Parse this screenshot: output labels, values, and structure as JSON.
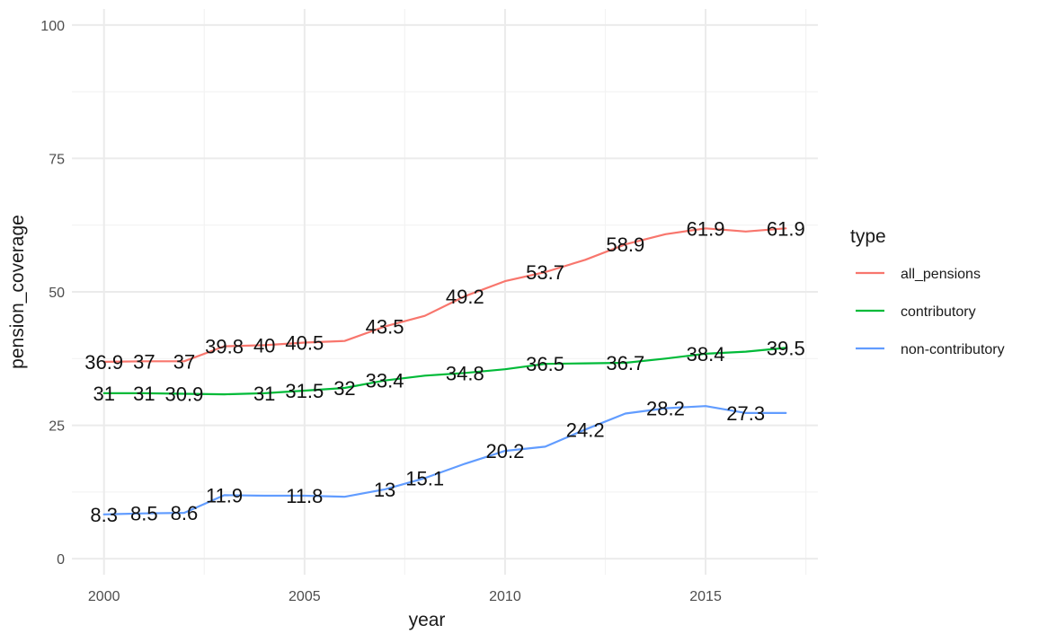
{
  "chart_data": {
    "type": "line",
    "title": "",
    "xlabel": "year",
    "ylabel": "pension_coverage",
    "xlim": [
      1999.2,
      2017.8
    ],
    "ylim": [
      -3,
      103
    ],
    "x_ticks": [
      2000,
      2005,
      2010,
      2015
    ],
    "y_ticks": [
      0,
      25,
      50,
      75,
      100
    ],
    "grid": true,
    "legend": {
      "title": "type",
      "position": "right"
    },
    "x": [
      2000,
      2001,
      2002,
      2003,
      2004,
      2005,
      2006,
      2007,
      2008,
      2009,
      2010,
      2011,
      2012,
      2013,
      2014,
      2015,
      2016,
      2017
    ],
    "series": [
      {
        "name": "all_pensions",
        "color": "#F8766D",
        "values": [
          36.9,
          37,
          37,
          39.8,
          40,
          40.5,
          40.8,
          43.5,
          45.5,
          49.2,
          52,
          53.7,
          56,
          58.9,
          60.8,
          61.9,
          61.3,
          61.9
        ],
        "labels": [
          "36.9",
          "37",
          "37",
          "39.8",
          "40",
          "40.5",
          "",
          "43.5",
          "",
          "49.2",
          "",
          "53.7",
          "",
          "58.9",
          "",
          "61.9",
          "",
          "61.9"
        ]
      },
      {
        "name": "contributory",
        "color": "#00BA38",
        "values": [
          31,
          31,
          30.9,
          30.8,
          31,
          31.5,
          32,
          33.4,
          34.3,
          34.8,
          35.5,
          36.5,
          36.6,
          36.7,
          37.5,
          38.4,
          38.8,
          39.5
        ],
        "labels": [
          "31",
          "31",
          "30.9",
          "",
          "31",
          "31.5",
          "32",
          "33.4",
          "",
          "34.8",
          "",
          "36.5",
          "",
          "36.7",
          "",
          "38.4",
          "",
          "39.5"
        ]
      },
      {
        "name": "non-contributory",
        "color": "#619CFF",
        "values": [
          8.3,
          8.5,
          8.6,
          11.9,
          11.8,
          11.8,
          11.6,
          13,
          15.1,
          17.8,
          20.2,
          21,
          24.2,
          27.2,
          28.2,
          28.6,
          27.3,
          27.3
        ],
        "labels": [
          "8.3",
          "8.5",
          "8.6",
          "11.9",
          "",
          "11.8",
          "",
          "13",
          "15.1",
          "",
          "20.2",
          "",
          "24.2",
          "",
          "28.2",
          "",
          "27.3",
          ""
        ]
      }
    ]
  }
}
